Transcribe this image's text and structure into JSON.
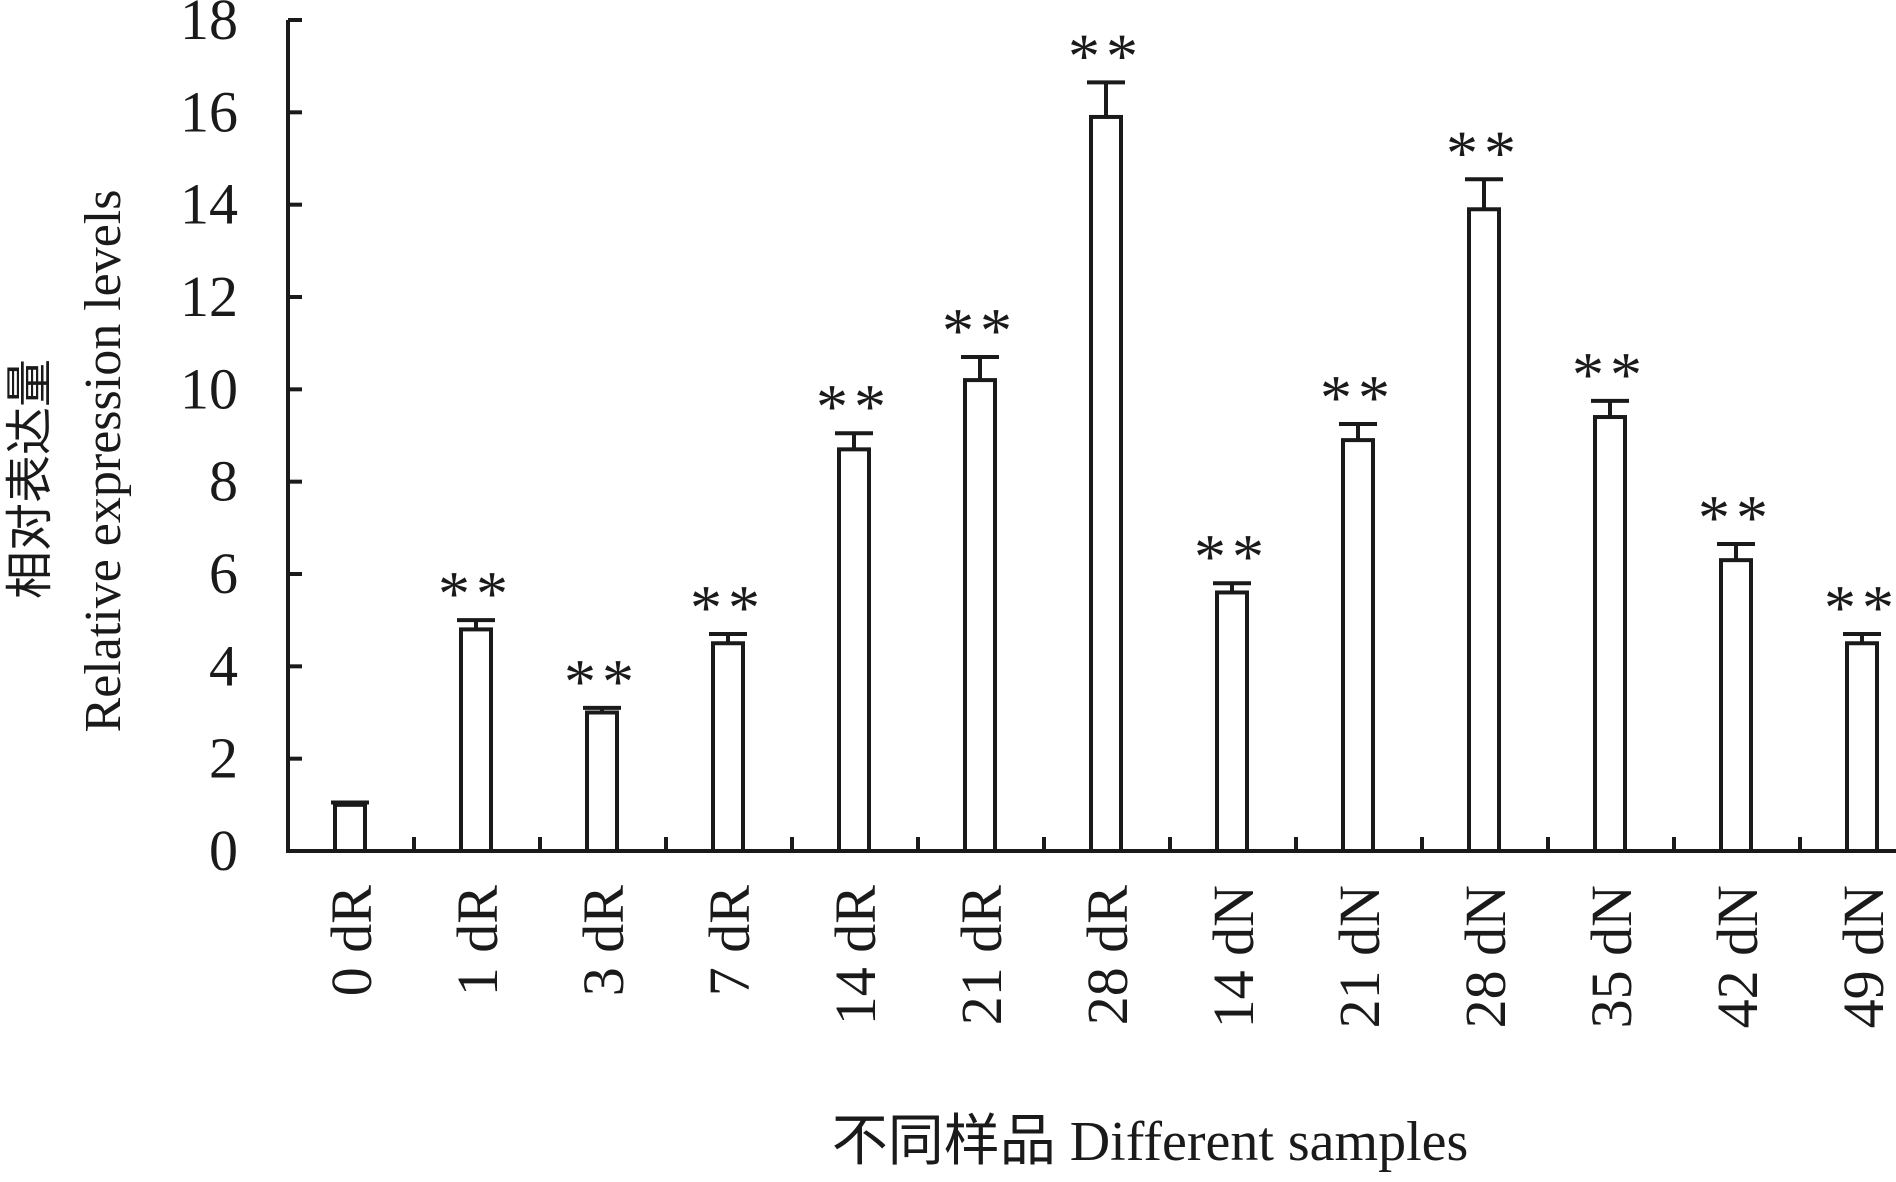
{
  "chart_data": {
    "type": "bar",
    "title": "",
    "xlabel": "不同样品 Different samples",
    "ylabel_cn": "相对表达量",
    "ylabel_en": "Relative expression levels",
    "ylim": [
      0,
      18
    ],
    "yticks": [
      0,
      2,
      4,
      6,
      8,
      10,
      12,
      14,
      16,
      18
    ],
    "grid": false,
    "categories": [
      "0 dR",
      "1 dR",
      "3 dR",
      "7 dR",
      "14 dR",
      "21 dR",
      "28 dR",
      "14 dN",
      "21 dN",
      "28 dN",
      "35 dN",
      "42 dN",
      "49 dN"
    ],
    "values": [
      1.0,
      4.8,
      3.0,
      4.5,
      8.7,
      10.2,
      15.9,
      5.6,
      8.9,
      13.9,
      9.4,
      6.3,
      4.5
    ],
    "errors": [
      0.05,
      0.2,
      0.1,
      0.2,
      0.35,
      0.5,
      0.75,
      0.2,
      0.35,
      0.65,
      0.35,
      0.35,
      0.2
    ],
    "significance": [
      "",
      "**",
      "**",
      "**",
      "**",
      "**",
      "**",
      "**",
      "**",
      "**",
      "**",
      "**",
      "**"
    ],
    "colors": {
      "bar_fill": "#ffffff",
      "stroke": "#1a1a1a"
    }
  }
}
